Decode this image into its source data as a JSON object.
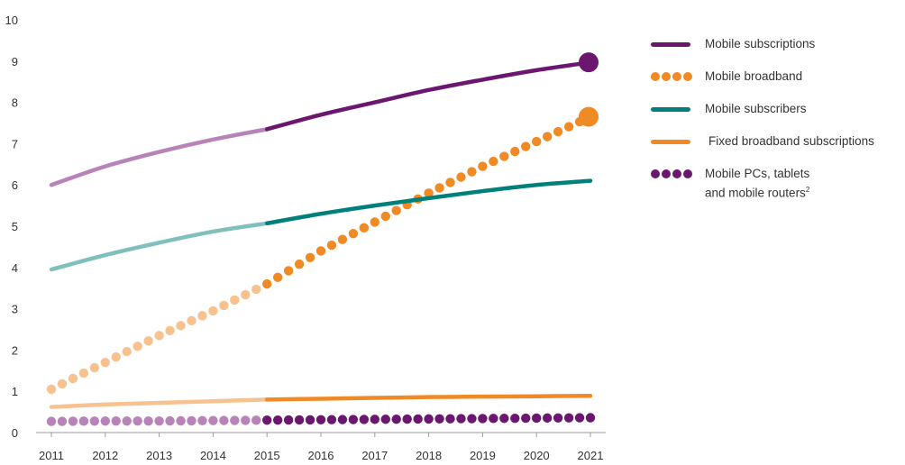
{
  "chart_data": {
    "type": "line",
    "title": "",
    "xlabel": "",
    "ylabel": "",
    "ylim": [
      0,
      10
    ],
    "y_ticks": [
      "0",
      "1",
      "2",
      "3",
      "4",
      "5",
      "6",
      "7",
      "8",
      "9",
      "10"
    ],
    "x": [
      2011,
      2012,
      2013,
      2014,
      2015,
      2016,
      2017,
      2018,
      2019,
      2020,
      2021
    ],
    "x_tick_labels": [
      "2011",
      "2012",
      "2013",
      "2014",
      "2015",
      "2016",
      "2017",
      "2018",
      "2019",
      "2020",
      "2021"
    ],
    "forecast_from": 2015,
    "grid": false,
    "legend_position": "right",
    "series": [
      {
        "name": "Mobile subscriptions",
        "style": "line",
        "color": "#6b1770",
        "light_color": "#b783b9",
        "end_marker": true,
        "values": [
          6.0,
          6.45,
          6.8,
          7.1,
          7.35,
          7.7,
          8.0,
          8.3,
          8.55,
          8.78,
          8.97
        ]
      },
      {
        "name": "Mobile broadband",
        "style": "dots",
        "color": "#f08a24",
        "light_color": "#f7c290",
        "end_marker": true,
        "values": [
          1.05,
          1.7,
          2.35,
          2.95,
          3.6,
          4.4,
          5.1,
          5.8,
          6.45,
          7.05,
          7.65
        ]
      },
      {
        "name": "Mobile subscribers",
        "style": "line",
        "color": "#00807a",
        "light_color": "#80c0bc",
        "end_marker": false,
        "values": [
          3.95,
          4.3,
          4.6,
          4.87,
          5.07,
          5.3,
          5.5,
          5.68,
          5.85,
          6.0,
          6.1
        ]
      },
      {
        "name": "Fixed broadband subscriptions",
        "style": "line",
        "color": "#f08a24",
        "light_color": "#f7c290",
        "end_marker": false,
        "values": [
          0.62,
          0.68,
          0.72,
          0.76,
          0.8,
          0.82,
          0.84,
          0.86,
          0.87,
          0.88,
          0.89
        ]
      },
      {
        "name": "Mobile PCs, tablets and mobile routers",
        "style": "dots",
        "color": "#6b1770",
        "light_color": "#b783b9",
        "end_marker": false,
        "values": [
          0.27,
          0.28,
          0.28,
          0.29,
          0.3,
          0.31,
          0.32,
          0.33,
          0.34,
          0.35,
          0.36
        ]
      }
    ]
  },
  "legend": {
    "items": [
      {
        "label": "Mobile subscriptions",
        "style": "line",
        "color": "#6b1770"
      },
      {
        "label": "Mobile broadband",
        "style": "dots",
        "color": "#f08a24"
      },
      {
        "label": "Mobile subscribers",
        "style": "line",
        "color": "#00807a"
      },
      {
        "label": "Fixed broadband subscriptions",
        "style": "line",
        "color": "#f08a24"
      },
      {
        "label": "Mobile PCs, tablets",
        "label_line2": "and mobile routers",
        "footnote": "2",
        "style": "dots",
        "color": "#6b1770"
      }
    ]
  }
}
